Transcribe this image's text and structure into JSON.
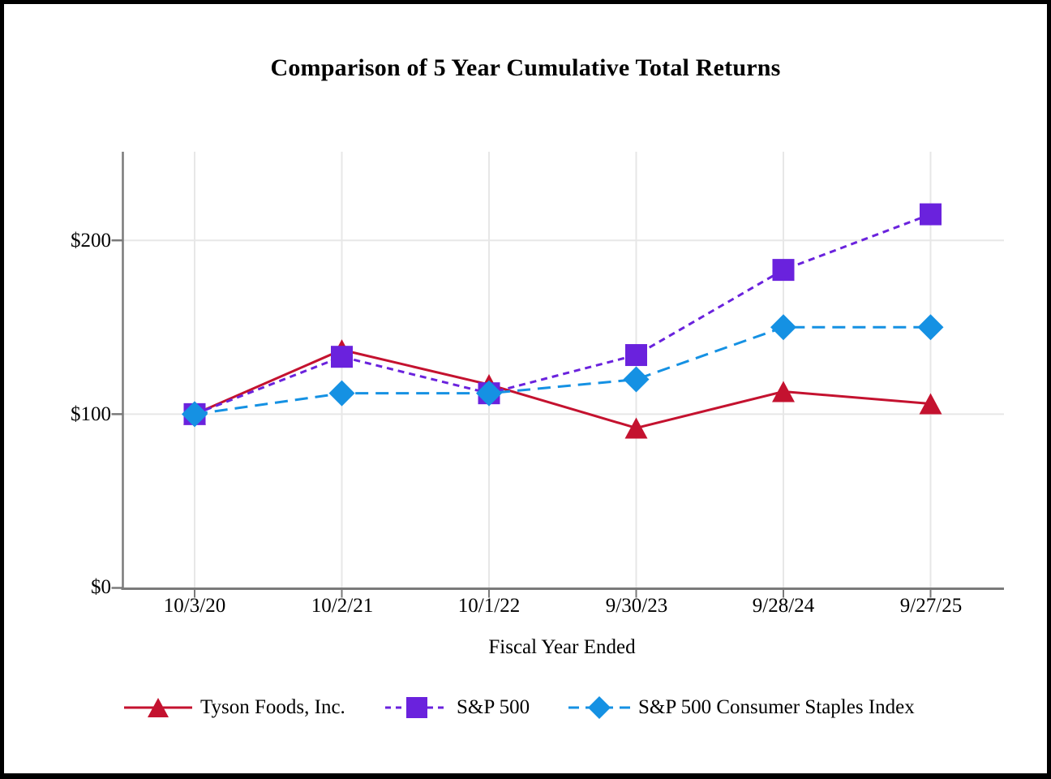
{
  "chart_data": {
    "type": "line",
    "title": "Comparison of 5 Year Cumulative Total Returns",
    "xlabel": "Fiscal Year Ended",
    "ylabel": "",
    "x_labels": [
      "10/3/20",
      "10/2/21",
      "10/1/22",
      "9/30/23",
      "9/28/24",
      "9/27/25"
    ],
    "y_ticks": [
      0,
      100,
      200
    ],
    "y_tick_labels": [
      "$0",
      "$100",
      "$200"
    ],
    "ylim": [
      0,
      251
    ],
    "grid": true,
    "legend_position": "bottom",
    "series": [
      {
        "name": "Tyson Foods, Inc.",
        "values": [
          100,
          137,
          117,
          92,
          113,
          106
        ],
        "color": "#C4122F",
        "marker": "triangle",
        "line_style": "solid"
      },
      {
        "name": "S&P 500",
        "values": [
          100,
          133,
          112,
          134,
          183,
          215
        ],
        "color": "#6A22DD",
        "marker": "square",
        "line_style": "dashed"
      },
      {
        "name": "S&P 500 Consumer Staples Index",
        "values": [
          100,
          112,
          112,
          120,
          150,
          150
        ],
        "color": "#1591E3",
        "marker": "diamond",
        "line_style": "long-dash"
      }
    ],
    "colors": {
      "axis": "#7a7a7a",
      "gridline": "#e7e7e7",
      "text": "#000000",
      "background": "#ffffff",
      "border": "#000000"
    }
  }
}
